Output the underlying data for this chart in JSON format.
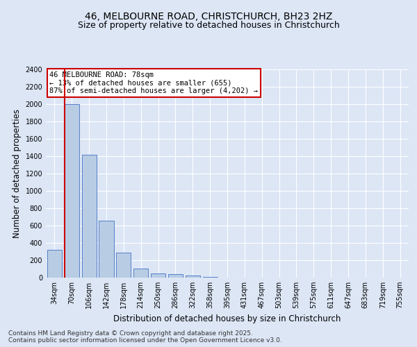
{
  "title_line1": "46, MELBOURNE ROAD, CHRISTCHURCH, BH23 2HZ",
  "title_line2": "Size of property relative to detached houses in Christchurch",
  "xlabel": "Distribution of detached houses by size in Christchurch",
  "ylabel": "Number of detached properties",
  "categories": [
    "34sqm",
    "70sqm",
    "106sqm",
    "142sqm",
    "178sqm",
    "214sqm",
    "250sqm",
    "286sqm",
    "322sqm",
    "358sqm",
    "395sqm",
    "431sqm",
    "467sqm",
    "503sqm",
    "539sqm",
    "575sqm",
    "611sqm",
    "647sqm",
    "683sqm",
    "719sqm",
    "755sqm"
  ],
  "values": [
    320,
    2000,
    1420,
    655,
    285,
    105,
    50,
    40,
    22,
    8,
    0,
    0,
    0,
    0,
    0,
    0,
    0,
    0,
    0,
    0,
    0
  ],
  "bar_color": "#b8cce4",
  "bar_edge_color": "#4472c4",
  "highlight_bar_index": 1,
  "highlight_line_color": "#cc0000",
  "ylim": [
    0,
    2400
  ],
  "yticks": [
    0,
    200,
    400,
    600,
    800,
    1000,
    1200,
    1400,
    1600,
    1800,
    2000,
    2200,
    2400
  ],
  "annotation_text": "46 MELBOURNE ROAD: 78sqm\n← 13% of detached houses are smaller (655)\n87% of semi-detached houses are larger (4,202) →",
  "annotation_box_color": "#ffffff",
  "annotation_box_edge_color": "#cc0000",
  "footer_line1": "Contains HM Land Registry data © Crown copyright and database right 2025.",
  "footer_line2": "Contains public sector information licensed under the Open Government Licence v3.0.",
  "background_color": "#dce6f5",
  "plot_bg_color": "#dce6f5",
  "grid_color": "#ffffff",
  "title_fontsize": 10,
  "subtitle_fontsize": 9,
  "axis_label_fontsize": 8.5,
  "tick_fontsize": 7,
  "footer_fontsize": 6.5,
  "annotation_fontsize": 7.5
}
